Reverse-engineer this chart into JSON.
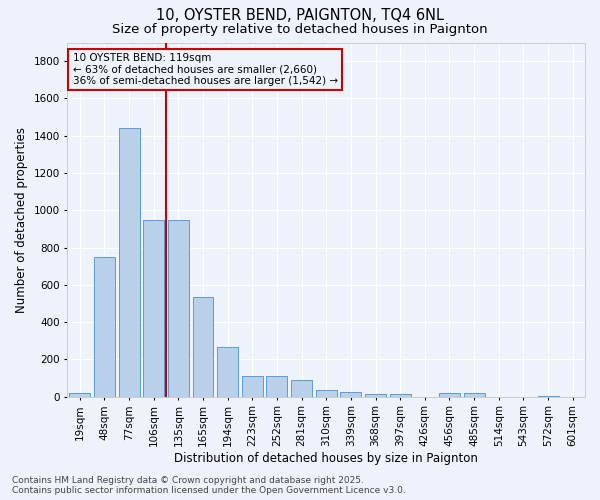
{
  "title": "10, OYSTER BEND, PAIGNTON, TQ4 6NL",
  "subtitle": "Size of property relative to detached houses in Paignton",
  "xlabel": "Distribution of detached houses by size in Paignton",
  "ylabel": "Number of detached properties",
  "categories": [
    "19sqm",
    "48sqm",
    "77sqm",
    "106sqm",
    "135sqm",
    "165sqm",
    "194sqm",
    "223sqm",
    "252sqm",
    "281sqm",
    "310sqm",
    "339sqm",
    "368sqm",
    "397sqm",
    "426sqm",
    "456sqm",
    "485sqm",
    "514sqm",
    "543sqm",
    "572sqm",
    "601sqm"
  ],
  "values": [
    20,
    750,
    1440,
    950,
    950,
    535,
    265,
    110,
    110,
    90,
    35,
    25,
    15,
    15,
    0,
    18,
    18,
    0,
    0,
    5,
    0
  ],
  "bar_color": "#b8d0ea",
  "bar_edge_color": "#5b9bd5",
  "background_color": "#eef2fb",
  "grid_color": "#ffffff",
  "vline_x_pos": 3.5,
  "vline_color": "#cc0000",
  "annotation_line1": "10 OYSTER BEND: 119sqm",
  "annotation_line2": "← 63% of detached houses are smaller (2,660)",
  "annotation_line3": "36% of semi-detached houses are larger (1,542) →",
  "annotation_box_color": "#cc0000",
  "footer": "Contains HM Land Registry data © Crown copyright and database right 2025.\nContains public sector information licensed under the Open Government Licence v3.0.",
  "ylim": [
    0,
    1900
  ],
  "yticks": [
    0,
    200,
    400,
    600,
    800,
    1000,
    1200,
    1400,
    1600,
    1800
  ],
  "title_fontsize": 10.5,
  "subtitle_fontsize": 9.5,
  "axis_label_fontsize": 8.5,
  "tick_fontsize": 7.5,
  "footer_fontsize": 6.5,
  "annotation_fontsize": 7.5
}
